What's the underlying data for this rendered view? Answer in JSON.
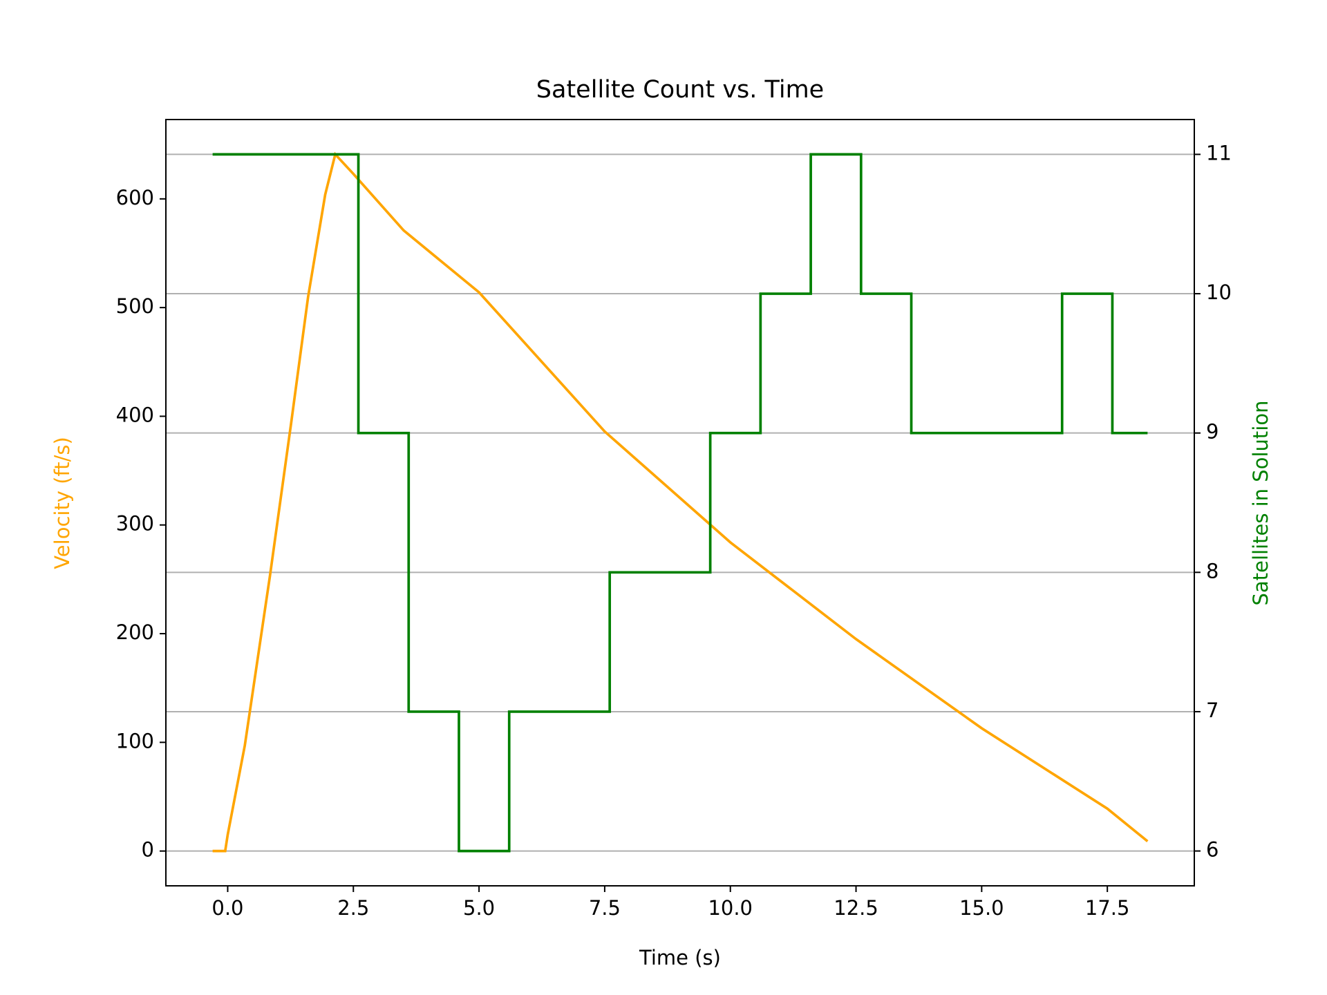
{
  "chart_data": {
    "type": "line",
    "title": "Satellite Count vs. Time",
    "xlabel": "Time (s)",
    "ylabel": "Velocity (ft/s)",
    "y2label": "Satellites in Solution",
    "xlim": [
      -1.23,
      19.23
    ],
    "ylim": [
      -32,
      673
    ],
    "y2lim": [
      5.75,
      11.25
    ],
    "xticks": [
      {
        "value": 0,
        "label": "0.0"
      },
      2.5,
      {
        "value": 5,
        "label": "5.0"
      },
      7.5,
      {
        "value": 10,
        "label": "10.0"
      },
      12.5,
      {
        "value": 15,
        "label": "15.0"
      },
      17.5
    ],
    "yticks": [
      0,
      100,
      200,
      300,
      400,
      500,
      600
    ],
    "y2ticks": [
      6,
      7,
      8,
      9,
      10,
      11
    ],
    "grid": "y2",
    "series": [
      {
        "name": "Velocity",
        "color": "#ffa500",
        "axis": "y",
        "x": [
          -0.3,
          -0.05,
          0,
          0.34,
          0.84,
          1.26,
          1.6,
          1.94,
          2.14,
          2.5,
          3.5,
          5,
          7.5,
          10,
          12.5,
          15,
          17.5,
          18.3
        ],
        "values": [
          0,
          0,
          15,
          97,
          253,
          393,
          510,
          604,
          641,
          623,
          571,
          514,
          386,
          284,
          195,
          113,
          39,
          9
        ]
      },
      {
        "name": "Satellites",
        "color": "#008000",
        "axis": "y2",
        "drawstyle": "steps-post",
        "x": [
          -0.3,
          2.6,
          3.6,
          4.6,
          5.6,
          7.6,
          9.6,
          10.6,
          11.6,
          12.6,
          13.6,
          16.6,
          17.6,
          18.3
        ],
        "values": [
          11,
          9,
          7,
          6,
          7,
          8,
          9,
          10,
          11,
          10,
          9,
          10,
          9,
          9
        ]
      }
    ]
  }
}
